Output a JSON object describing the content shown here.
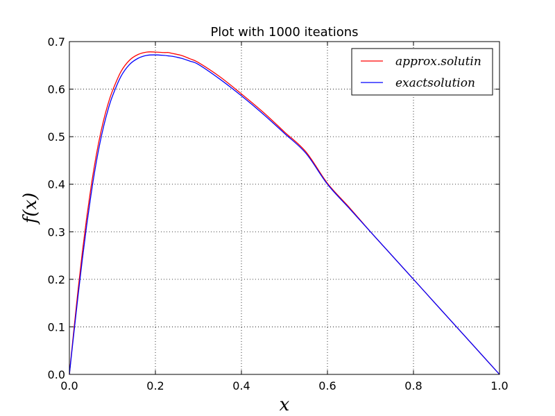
{
  "chart_data": {
    "type": "line",
    "title": "Plot with 1000 iteations",
    "xlabel": "x",
    "ylabel": "f(x)",
    "xlim": [
      0.0,
      1.0
    ],
    "ylim": [
      0.0,
      0.7
    ],
    "xticks": [
      "0.0",
      "0.2",
      "0.4",
      "0.6",
      "0.8",
      "1.0"
    ],
    "yticks": [
      "0.0",
      "0.1",
      "0.2",
      "0.3",
      "0.4",
      "0.5",
      "0.6",
      "0.7"
    ],
    "grid": true,
    "legend_position": "top-right",
    "series": [
      {
        "name": "approx.solutin",
        "color": "#ff0000",
        "x": [
          0.0,
          0.01,
          0.02,
          0.03,
          0.04,
          0.05,
          0.06,
          0.07,
          0.08,
          0.09,
          0.1,
          0.12,
          0.14,
          0.16,
          0.18,
          0.2,
          0.22,
          0.23,
          0.24,
          0.26,
          0.28,
          0.3,
          0.35,
          0.4,
          0.45,
          0.5,
          0.55,
          0.6,
          0.65,
          0.7,
          0.75,
          0.8,
          0.85,
          0.9,
          0.95,
          1.0
        ],
        "y": [
          0.0,
          0.09,
          0.176,
          0.256,
          0.328,
          0.392,
          0.448,
          0.496,
          0.536,
          0.569,
          0.596,
          0.637,
          0.661,
          0.673,
          0.678,
          0.678,
          0.677,
          0.677,
          0.675,
          0.671,
          0.664,
          0.656,
          0.626,
          0.59,
          0.552,
          0.51,
          0.468,
          0.402,
          0.352,
          0.3,
          0.25,
          0.2,
          0.15,
          0.1,
          0.05,
          0.0
        ]
      },
      {
        "name": "exactsolution",
        "color": "#0000ff",
        "x": [
          0.0,
          0.01,
          0.02,
          0.03,
          0.04,
          0.05,
          0.06,
          0.07,
          0.08,
          0.09,
          0.1,
          0.12,
          0.14,
          0.16,
          0.18,
          0.2,
          0.22,
          0.23,
          0.24,
          0.26,
          0.28,
          0.3,
          0.35,
          0.4,
          0.45,
          0.5,
          0.55,
          0.6,
          0.65,
          0.7,
          0.75,
          0.8,
          0.85,
          0.9,
          0.95,
          1.0
        ],
        "y": [
          0.0,
          0.083,
          0.164,
          0.241,
          0.312,
          0.376,
          0.433,
          0.482,
          0.523,
          0.557,
          0.585,
          0.627,
          0.652,
          0.665,
          0.671,
          0.672,
          0.671,
          0.67,
          0.669,
          0.665,
          0.659,
          0.652,
          0.621,
          0.586,
          0.548,
          0.507,
          0.465,
          0.4,
          0.35,
          0.3,
          0.25,
          0.2,
          0.15,
          0.1,
          0.05,
          0.0
        ]
      }
    ]
  }
}
